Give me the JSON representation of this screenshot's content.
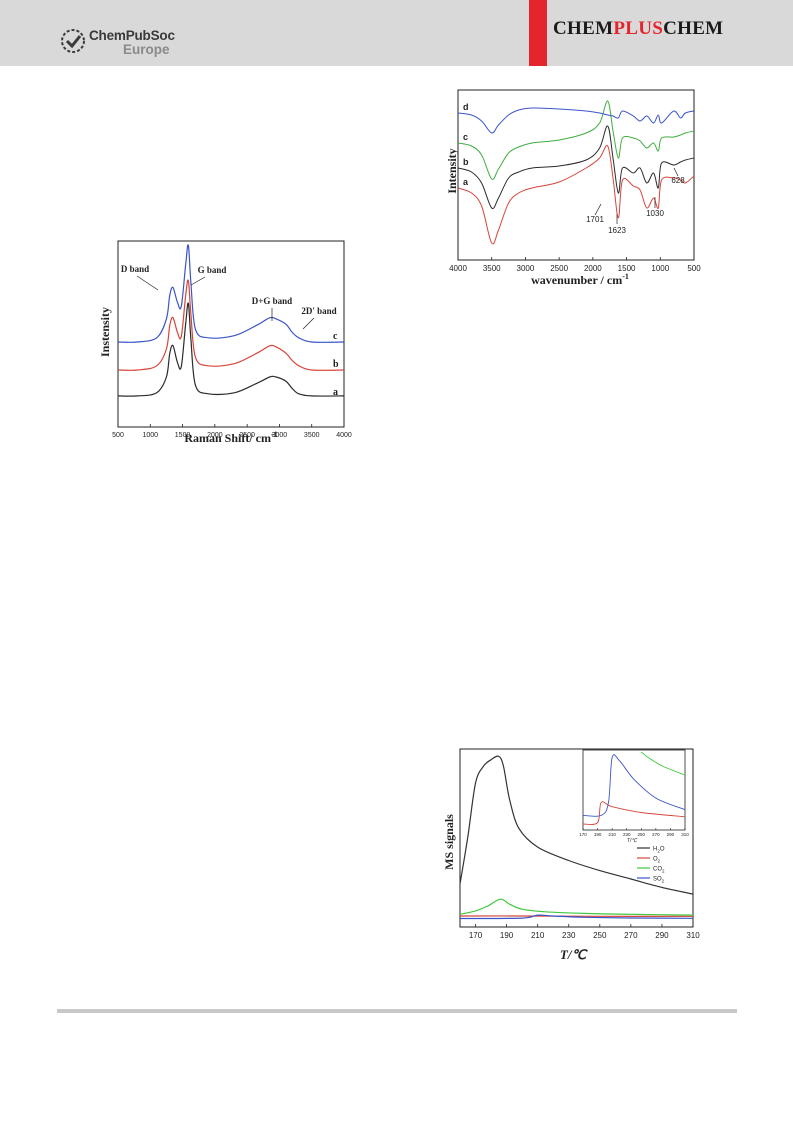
{
  "header": {
    "publisher_line1": "ChemPubSoc",
    "publisher_line2": "Europe",
    "journal_left": "CHEM",
    "journal_mid": "PLUS",
    "journal_right": "CHEM",
    "journal_accent_color": "#e4262c",
    "band_color": "#d9d9d9"
  },
  "chart_data": [
    {
      "type": "line",
      "xlabel": "Raman Shift/ cm",
      "xlabel_sup": "-1",
      "ylabel": "Instensity",
      "xlim": [
        500,
        4000
      ],
      "xticks": [
        500,
        1000,
        1500,
        2000,
        2500,
        3000,
        3500,
        4000
      ],
      "grid": false,
      "annotations": [
        "D band",
        "G band",
        "D+G band",
        "2D' band"
      ],
      "series": [
        {
          "name": "a",
          "color": "#2b2b2b",
          "x": [
            500,
            800,
            1100,
            1250,
            1300,
            1350,
            1420,
            1480,
            1550,
            1590,
            1630,
            1700,
            1900,
            2300,
            2650,
            2850,
            2950,
            3100,
            3200,
            3300,
            3500,
            4000
          ],
          "y": [
            0.02,
            0.02,
            0.05,
            0.2,
            0.42,
            0.5,
            0.34,
            0.3,
            0.72,
            0.9,
            0.55,
            0.12,
            0.04,
            0.05,
            0.14,
            0.2,
            0.2,
            0.16,
            0.09,
            0.04,
            0.02,
            0.02
          ]
        },
        {
          "name": "b",
          "color": "#d6453a",
          "x": [
            500,
            800,
            1100,
            1250,
            1300,
            1350,
            1420,
            1480,
            1550,
            1590,
            1630,
            1700,
            1900,
            2300,
            2650,
            2850,
            2950,
            3100,
            3200,
            3300,
            3500,
            4000
          ],
          "y": [
            0.0,
            0.0,
            0.04,
            0.2,
            0.42,
            0.5,
            0.36,
            0.32,
            0.72,
            0.85,
            0.52,
            0.12,
            0.04,
            0.06,
            0.16,
            0.23,
            0.22,
            0.16,
            0.09,
            0.04,
            0.0,
            0.0
          ]
        },
        {
          "name": "c",
          "color": "#3b55c9",
          "x": [
            500,
            800,
            1100,
            1250,
            1300,
            1350,
            1420,
            1480,
            1550,
            1590,
            1630,
            1700,
            1900,
            2300,
            2650,
            2850,
            2950,
            3100,
            3200,
            3300,
            3500,
            4000
          ],
          "y": [
            0.0,
            0.0,
            0.04,
            0.22,
            0.44,
            0.52,
            0.38,
            0.34,
            0.75,
            0.92,
            0.55,
            0.12,
            0.04,
            0.06,
            0.16,
            0.23,
            0.22,
            0.17,
            0.09,
            0.04,
            0.0,
            0.0
          ]
        }
      ]
    },
    {
      "type": "line",
      "xlabel": "wavenumber / cm",
      "xlabel_sup": "-1",
      "ylabel": "Intensity",
      "xlim": [
        4000,
        500
      ],
      "xticks": [
        4000,
        3500,
        3000,
        2500,
        2000,
        1500,
        1000,
        500
      ],
      "grid": false,
      "annotations": [
        "1701",
        "1623",
        "1030",
        "628"
      ],
      "series": [
        {
          "name": "a",
          "color": "#d6453a",
          "x": [
            4000,
            3800,
            3650,
            3500,
            3400,
            3250,
            3100,
            2900,
            2500,
            2100,
            1900,
            1780,
            1701,
            1623,
            1560,
            1400,
            1300,
            1200,
            1100,
            1030,
            980,
            800,
            700,
            628,
            500
          ],
          "y": [
            0.0,
            -0.05,
            -0.18,
            -0.55,
            -0.42,
            -0.15,
            -0.05,
            0.0,
            0.06,
            0.2,
            0.3,
            0.42,
            0.1,
            -0.3,
            0.08,
            0.02,
            -0.02,
            -0.2,
            -0.1,
            -0.2,
            0.08,
            0.1,
            0.08,
            0.05,
            0.12
          ]
        },
        {
          "name": "b",
          "color": "#2b2b2b",
          "x": [
            4000,
            3800,
            3650,
            3500,
            3400,
            3250,
            3100,
            2900,
            2500,
            2100,
            1900,
            1780,
            1701,
            1623,
            1560,
            1400,
            1300,
            1200,
            1100,
            1030,
            980,
            800,
            700,
            628,
            500
          ],
          "y": [
            0.0,
            -0.04,
            -0.15,
            -0.4,
            -0.3,
            -0.1,
            -0.04,
            0.0,
            0.02,
            0.08,
            0.2,
            0.42,
            0.1,
            -0.25,
            0.0,
            -0.05,
            0.0,
            -0.15,
            -0.05,
            -0.2,
            0.05,
            0.03,
            0.06,
            0.08,
            0.1
          ]
        },
        {
          "name": "c",
          "color": "#3fae3f",
          "x": [
            4000,
            3800,
            3650,
            3500,
            3400,
            3250,
            3100,
            2900,
            2500,
            2100,
            1900,
            1780,
            1701,
            1623,
            1560,
            1400,
            1300,
            1200,
            1100,
            1030,
            980,
            800,
            700,
            628,
            500
          ],
          "y": [
            0.0,
            -0.03,
            -0.12,
            -0.36,
            -0.26,
            -0.1,
            -0.04,
            0.0,
            0.03,
            0.1,
            0.2,
            0.42,
            0.12,
            -0.15,
            0.05,
            0.05,
            0.02,
            -0.05,
            0.0,
            -0.08,
            0.05,
            0.06,
            0.08,
            0.1,
            0.12
          ]
        },
        {
          "name": "d",
          "color": "#3b55c9",
          "x": [
            4000,
            3800,
            3650,
            3500,
            3400,
            3250,
            3100,
            2900,
            2500,
            2100,
            1900,
            1780,
            1701,
            1623,
            1560,
            1400,
            1300,
            1200,
            1100,
            1030,
            980,
            800,
            700,
            628,
            500
          ],
          "y": [
            0.0,
            -0.02,
            -0.08,
            -0.2,
            -0.12,
            -0.02,
            0.03,
            0.05,
            0.04,
            0.02,
            0.0,
            -0.02,
            -0.03,
            -0.05,
            0.02,
            -0.03,
            -0.08,
            -0.03,
            -0.1,
            -0.02,
            -0.1,
            0.02,
            -0.05,
            0.0,
            0.02
          ]
        }
      ]
    },
    {
      "type": "line",
      "xlabel": "T/℃",
      "ylabel": "MS signals",
      "xlim": [
        160,
        310
      ],
      "xticks": [
        170,
        190,
        210,
        230,
        250,
        270,
        290,
        310
      ],
      "grid": false,
      "legend": "right",
      "series": [
        {
          "name": "H",
          "sub": "2",
          "suffix": "O",
          "color": "#333333",
          "x": [
            160,
            165,
            170,
            175,
            180,
            185,
            188,
            192,
            198,
            210,
            230,
            250,
            270,
            290,
            310
          ],
          "y": [
            0.22,
            0.5,
            0.82,
            0.92,
            0.96,
            0.98,
            0.92,
            0.72,
            0.55,
            0.44,
            0.36,
            0.3,
            0.25,
            0.2,
            0.16
          ]
        },
        {
          "name": "O",
          "sub": "2",
          "suffix": "",
          "color": "#d6453a",
          "x": [
            160,
            200,
            250,
            310
          ],
          "y": [
            0.03,
            0.03,
            0.028,
            0.028
          ]
        },
        {
          "name": "CO",
          "sub": "2",
          "suffix": "",
          "color": "#3fc83f",
          "x": [
            160,
            170,
            178,
            186,
            192,
            200,
            215,
            240,
            270,
            310
          ],
          "y": [
            0.04,
            0.06,
            0.09,
            0.13,
            0.1,
            0.07,
            0.055,
            0.045,
            0.04,
            0.035
          ]
        },
        {
          "name": "SO",
          "sub": "2",
          "suffix": "",
          "color": "#3b55c9",
          "x": [
            160,
            200,
            210,
            220,
            240,
            270,
            310
          ],
          "y": [
            0.015,
            0.017,
            0.035,
            0.03,
            0.022,
            0.018,
            0.016
          ]
        }
      ],
      "inset": {
        "xlim": [
          170,
          310
        ],
        "xticks": [
          170,
          190,
          210,
          230,
          250,
          270,
          290,
          310
        ],
        "xlabel": "T/℃",
        "series": [
          {
            "name": "O",
            "color": "#d6453a",
            "x": [
              170,
              190,
              195,
              210,
              250,
              310
            ],
            "y": [
              0.0,
              0.02,
              0.3,
              0.24,
              0.16,
              0.1
            ]
          },
          {
            "name": "CO",
            "color": "#3fc83f",
            "x": [
              250,
              260,
              280,
              310
            ],
            "y": [
              1.0,
              0.92,
              0.8,
              0.68
            ]
          },
          {
            "name": "SO",
            "color": "#3b55c9",
            "x": [
              170,
              195,
              205,
              210,
              220,
              240,
              270,
              310
            ],
            "y": [
              0.12,
              0.12,
              0.3,
              0.92,
              0.88,
              0.62,
              0.36,
              0.2
            ]
          }
        ]
      }
    }
  ]
}
